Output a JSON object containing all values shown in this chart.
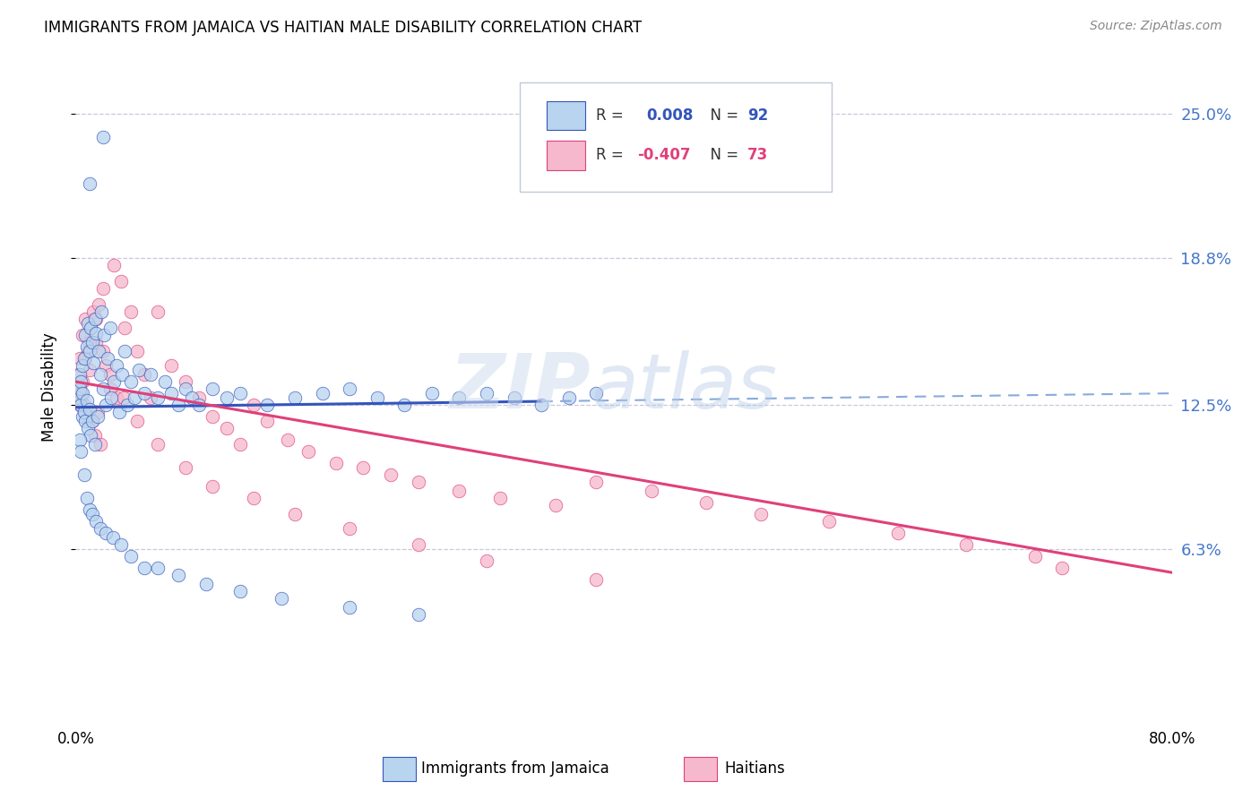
{
  "title": "IMMIGRANTS FROM JAMAICA VS HAITIAN MALE DISABILITY CORRELATION CHART",
  "source": "Source: ZipAtlas.com",
  "ylabel": "Male Disability",
  "ytick_labels": [
    "6.3%",
    "12.5%",
    "18.8%",
    "25.0%"
  ],
  "ytick_values": [
    0.063,
    0.125,
    0.188,
    0.25
  ],
  "xmin": 0.0,
  "xmax": 0.8,
  "ymin": -0.01,
  "ymax": 0.275,
  "color_jamaica": "#b8d4ee",
  "color_haiti": "#f5b8cc",
  "color_trendline_jamaica": "#3355bb",
  "color_trendline_haiti": "#e0407a",
  "color_dashed_line": "#9999bb",
  "watermark_zip": "ZIP",
  "watermark_atlas": "atlas",
  "jamaica_trend_x0": 0.0,
  "jamaica_trend_x1": 0.8,
  "jamaica_trend_y0": 0.124,
  "jamaica_trend_y1": 0.13,
  "jamaica_trend_solid_x1": 0.34,
  "haiti_trend_x0": 0.0,
  "haiti_trend_x1": 0.8,
  "haiti_trend_y0": 0.135,
  "haiti_trend_y1": 0.053,
  "jamaica_x": [
    0.002,
    0.003,
    0.003,
    0.004,
    0.004,
    0.005,
    0.005,
    0.005,
    0.006,
    0.006,
    0.007,
    0.007,
    0.008,
    0.008,
    0.009,
    0.009,
    0.01,
    0.01,
    0.011,
    0.011,
    0.012,
    0.012,
    0.013,
    0.014,
    0.014,
    0.015,
    0.016,
    0.017,
    0.018,
    0.019,
    0.02,
    0.021,
    0.022,
    0.023,
    0.025,
    0.026,
    0.028,
    0.03,
    0.032,
    0.034,
    0.036,
    0.038,
    0.04,
    0.043,
    0.046,
    0.05,
    0.055,
    0.06,
    0.065,
    0.07,
    0.075,
    0.08,
    0.085,
    0.09,
    0.1,
    0.11,
    0.12,
    0.14,
    0.16,
    0.18,
    0.2,
    0.22,
    0.24,
    0.26,
    0.28,
    0.3,
    0.32,
    0.34,
    0.36,
    0.38,
    0.003,
    0.004,
    0.006,
    0.008,
    0.01,
    0.012,
    0.015,
    0.018,
    0.022,
    0.027,
    0.033,
    0.04,
    0.05,
    0.06,
    0.075,
    0.095,
    0.12,
    0.15,
    0.2,
    0.25,
    0.01,
    0.02
  ],
  "jamaica_y": [
    0.128,
    0.132,
    0.138,
    0.125,
    0.135,
    0.142,
    0.12,
    0.13,
    0.145,
    0.122,
    0.155,
    0.118,
    0.15,
    0.127,
    0.16,
    0.115,
    0.148,
    0.123,
    0.158,
    0.112,
    0.152,
    0.118,
    0.143,
    0.162,
    0.108,
    0.156,
    0.12,
    0.148,
    0.138,
    0.165,
    0.132,
    0.155,
    0.125,
    0.145,
    0.158,
    0.128,
    0.135,
    0.142,
    0.122,
    0.138,
    0.148,
    0.125,
    0.135,
    0.128,
    0.14,
    0.13,
    0.138,
    0.128,
    0.135,
    0.13,
    0.125,
    0.132,
    0.128,
    0.125,
    0.132,
    0.128,
    0.13,
    0.125,
    0.128,
    0.13,
    0.132,
    0.128,
    0.125,
    0.13,
    0.128,
    0.13,
    0.128,
    0.125,
    0.128,
    0.13,
    0.11,
    0.105,
    0.095,
    0.085,
    0.08,
    0.078,
    0.075,
    0.072,
    0.07,
    0.068,
    0.065,
    0.06,
    0.055,
    0.055,
    0.052,
    0.048,
    0.045,
    0.042,
    0.038,
    0.035,
    0.22,
    0.24
  ],
  "haiti_x": [
    0.002,
    0.003,
    0.004,
    0.005,
    0.006,
    0.007,
    0.008,
    0.009,
    0.01,
    0.011,
    0.012,
    0.013,
    0.014,
    0.015,
    0.016,
    0.017,
    0.018,
    0.02,
    0.022,
    0.025,
    0.028,
    0.03,
    0.033,
    0.036,
    0.04,
    0.045,
    0.05,
    0.055,
    0.06,
    0.07,
    0.08,
    0.09,
    0.1,
    0.11,
    0.12,
    0.13,
    0.14,
    0.155,
    0.17,
    0.19,
    0.21,
    0.23,
    0.25,
    0.28,
    0.31,
    0.35,
    0.38,
    0.42,
    0.46,
    0.5,
    0.55,
    0.6,
    0.65,
    0.7,
    0.72,
    0.003,
    0.005,
    0.007,
    0.01,
    0.015,
    0.02,
    0.025,
    0.035,
    0.045,
    0.06,
    0.08,
    0.1,
    0.13,
    0.16,
    0.2,
    0.25,
    0.3,
    0.38
  ],
  "haiti_y": [
    0.138,
    0.145,
    0.13,
    0.155,
    0.125,
    0.162,
    0.12,
    0.148,
    0.14,
    0.158,
    0.118,
    0.165,
    0.112,
    0.152,
    0.122,
    0.168,
    0.108,
    0.175,
    0.142,
    0.132,
    0.185,
    0.128,
    0.178,
    0.158,
    0.165,
    0.148,
    0.138,
    0.128,
    0.165,
    0.142,
    0.135,
    0.128,
    0.12,
    0.115,
    0.108,
    0.125,
    0.118,
    0.11,
    0.105,
    0.1,
    0.098,
    0.095,
    0.092,
    0.088,
    0.085,
    0.082,
    0.092,
    0.088,
    0.083,
    0.078,
    0.075,
    0.07,
    0.065,
    0.06,
    0.055,
    0.125,
    0.135,
    0.145,
    0.152,
    0.162,
    0.148,
    0.138,
    0.128,
    0.118,
    0.108,
    0.098,
    0.09,
    0.085,
    0.078,
    0.072,
    0.065,
    0.058,
    0.05
  ]
}
